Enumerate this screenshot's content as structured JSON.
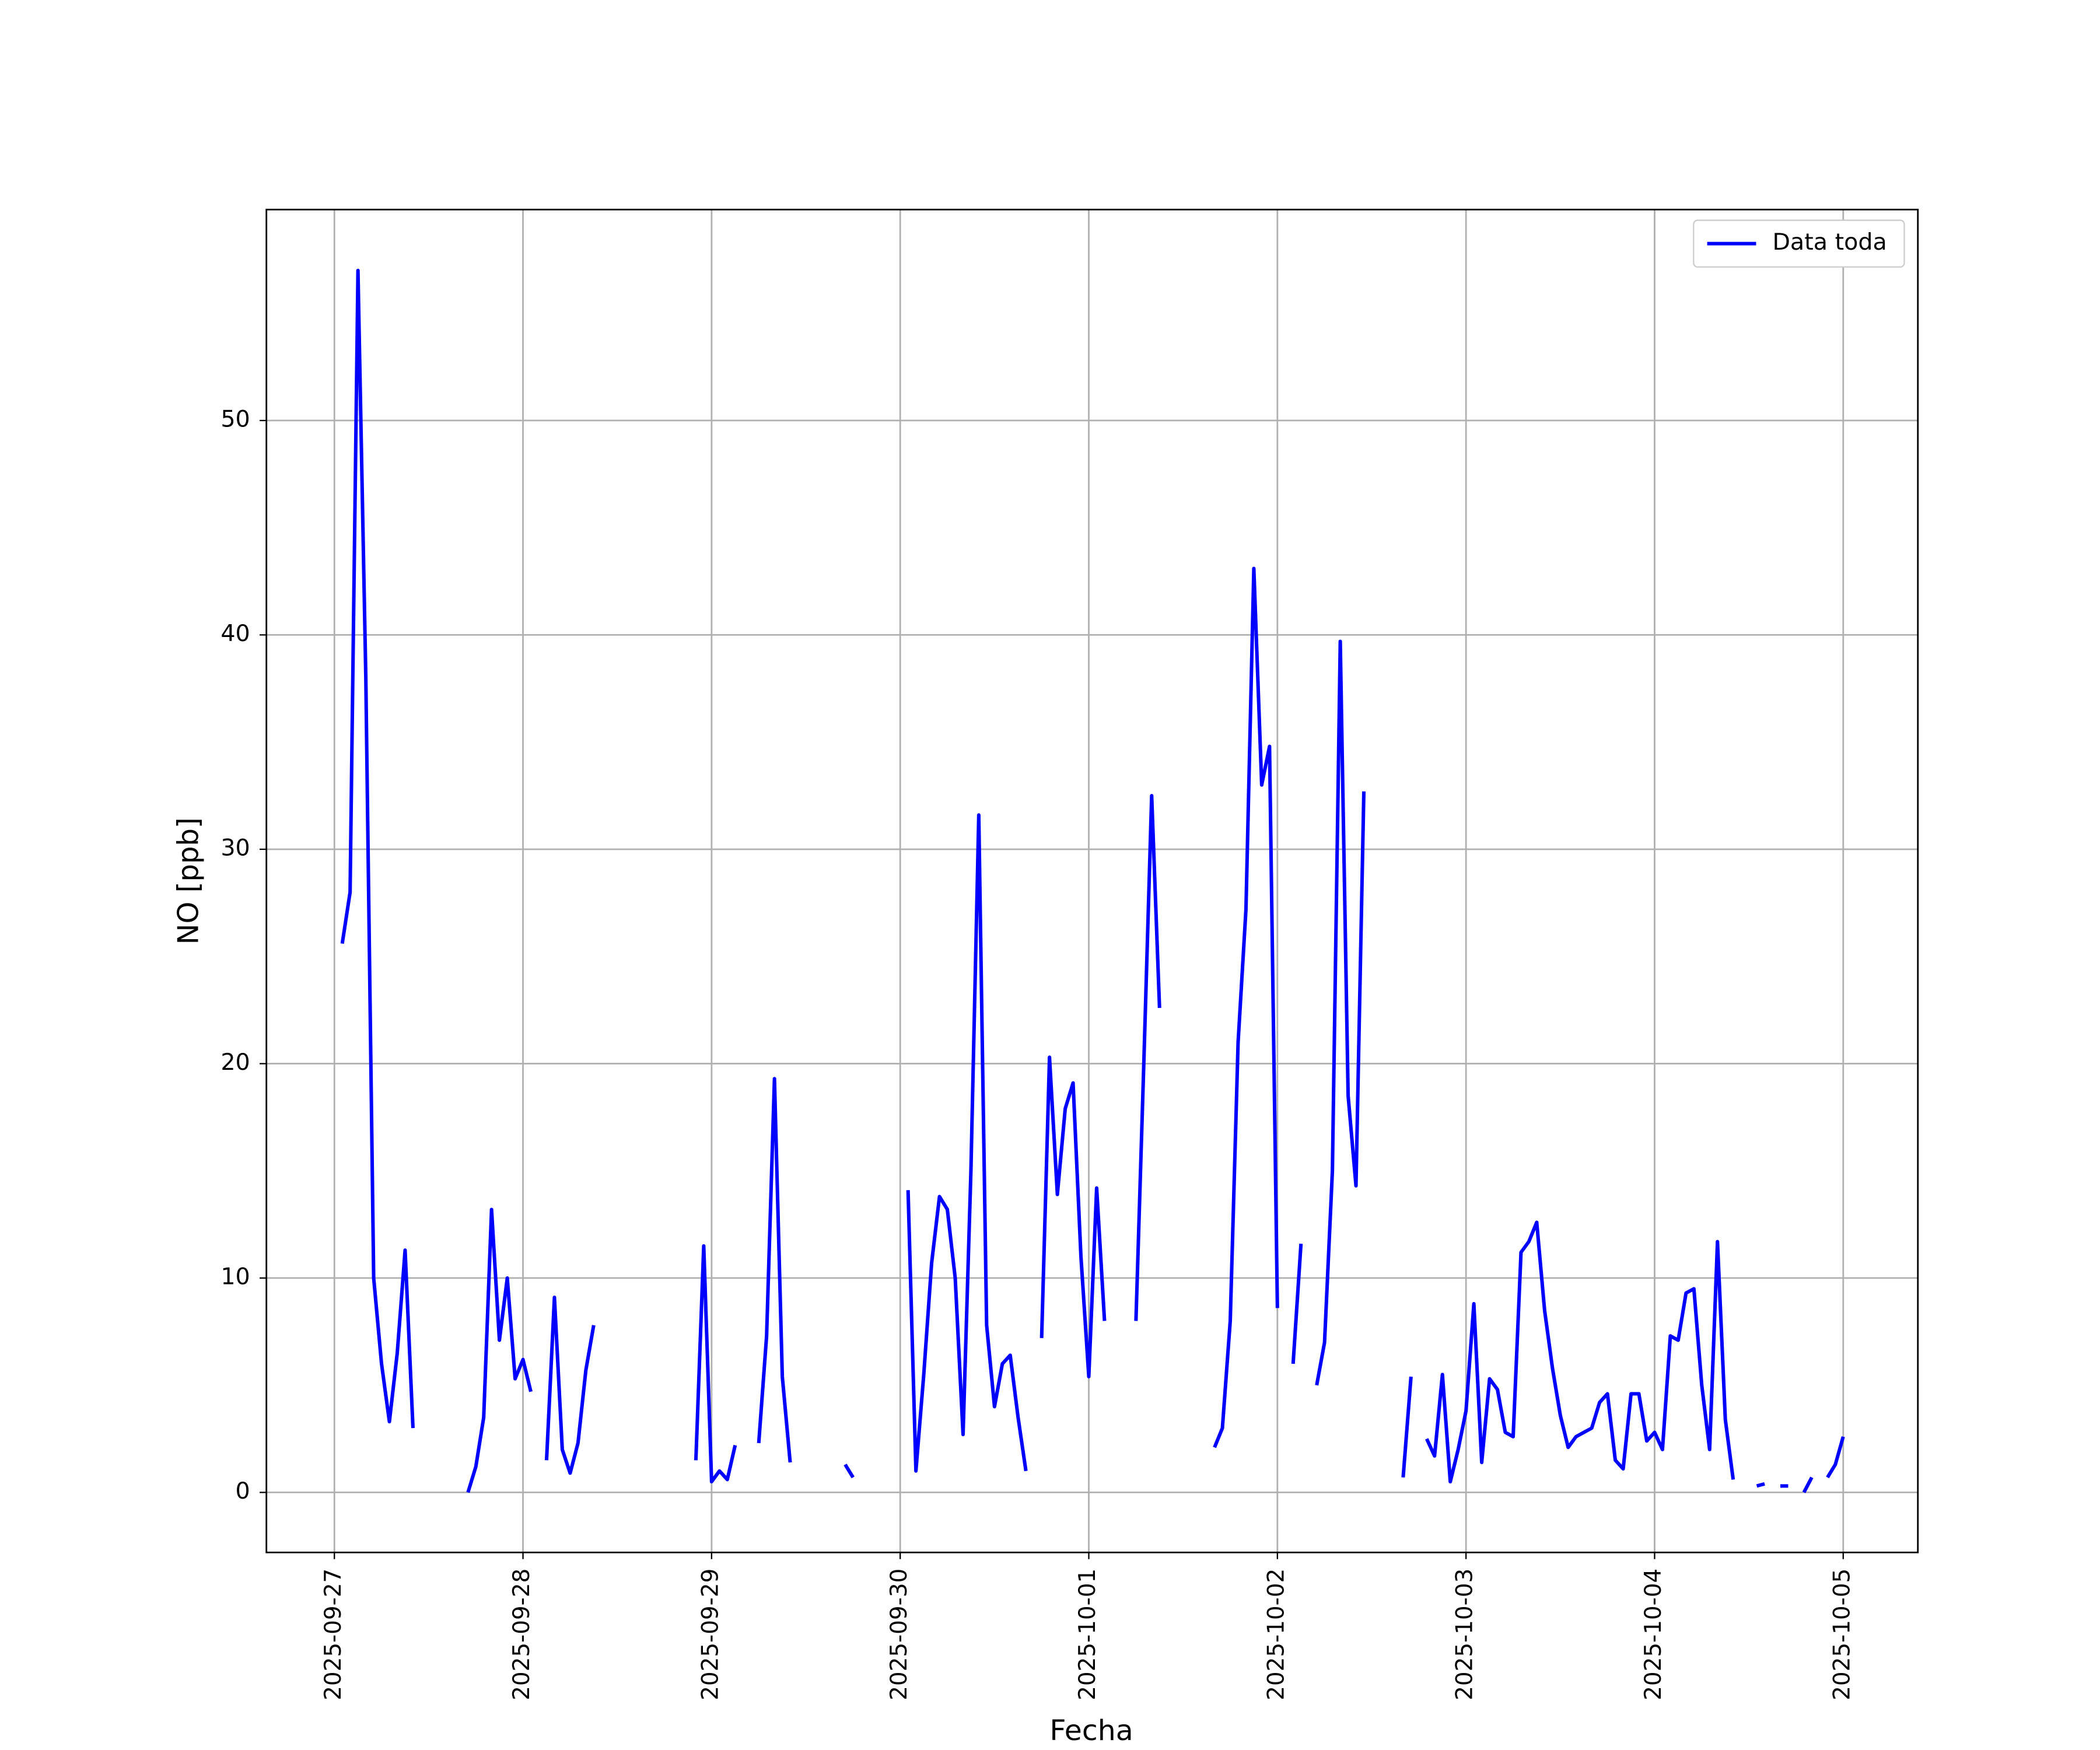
{
  "chart_data": {
    "type": "line",
    "xlabel": "Fecha",
    "ylabel": "NO [ppb]",
    "x": [
      "2025-09-27T01:00",
      "2025-09-27T02:00",
      "2025-09-27T03:00",
      "2025-09-27T04:00",
      "2025-09-27T05:00",
      "2025-09-27T06:00",
      "2025-09-27T07:00",
      "2025-09-27T08:00",
      "2025-09-27T09:00",
      "2025-09-27T10:00",
      "2025-09-27T11:00",
      "2025-09-27T17:00",
      "2025-09-27T18:00",
      "2025-09-27T19:00",
      "2025-09-27T20:00",
      "2025-09-27T21:00",
      "2025-09-27T22:00",
      "2025-09-27T23:00",
      "2025-09-28T00:00",
      "2025-09-28T01:00",
      "2025-09-28T02:00",
      "2025-09-28T03:00",
      "2025-09-28T04:00",
      "2025-09-28T05:00",
      "2025-09-28T06:00",
      "2025-09-28T07:00",
      "2025-09-28T08:00",
      "2025-09-28T09:00",
      "2025-09-28T10:00",
      "2025-09-28T22:00",
      "2025-09-28T23:00",
      "2025-09-29T00:00",
      "2025-09-29T01:00",
      "2025-09-29T02:00",
      "2025-09-29T03:00",
      "2025-09-29T04:00",
      "2025-09-29T06:00",
      "2025-09-29T07:00",
      "2025-09-29T08:00",
      "2025-09-29T09:00",
      "2025-09-29T10:00",
      "2025-09-29T11:00",
      "2025-09-29T17:00",
      "2025-09-29T18:00",
      "2025-09-29T19:00",
      "2025-09-30T01:00",
      "2025-09-30T02:00",
      "2025-09-30T03:00",
      "2025-09-30T04:00",
      "2025-09-30T05:00",
      "2025-09-30T06:00",
      "2025-09-30T07:00",
      "2025-09-30T08:00",
      "2025-09-30T09:00",
      "2025-09-30T10:00",
      "2025-09-30T11:00",
      "2025-09-30T12:00",
      "2025-09-30T13:00",
      "2025-09-30T14:00",
      "2025-09-30T15:00",
      "2025-09-30T16:00",
      "2025-09-30T17:00",
      "2025-09-30T18:00",
      "2025-09-30T19:00",
      "2025-09-30T20:00",
      "2025-09-30T21:00",
      "2025-09-30T22:00",
      "2025-09-30T23:00",
      "2025-10-01T00:00",
      "2025-10-01T01:00",
      "2025-10-01T02:00",
      "2025-10-01T03:00",
      "2025-10-01T06:00",
      "2025-10-01T07:00",
      "2025-10-01T08:00",
      "2025-10-01T09:00",
      "2025-10-01T10:00",
      "2025-10-01T16:00",
      "2025-10-01T17:00",
      "2025-10-01T18:00",
      "2025-10-01T19:00",
      "2025-10-01T20:00",
      "2025-10-01T21:00",
      "2025-10-01T22:00",
      "2025-10-01T23:00",
      "2025-10-02T00:00",
      "2025-10-02T01:00",
      "2025-10-02T02:00",
      "2025-10-02T03:00",
      "2025-10-02T04:00",
      "2025-10-02T05:00",
      "2025-10-02T06:00",
      "2025-10-02T07:00",
      "2025-10-02T08:00",
      "2025-10-02T09:00",
      "2025-10-02T10:00",
      "2025-10-02T11:00",
      "2025-10-02T12:00",
      "2025-10-02T16:00",
      "2025-10-02T17:00",
      "2025-10-02T18:00",
      "2025-10-02T19:00",
      "2025-10-02T20:00",
      "2025-10-02T21:00",
      "2025-10-02T22:00",
      "2025-10-02T23:00",
      "2025-10-03T00:00",
      "2025-10-03T01:00",
      "2025-10-03T02:00",
      "2025-10-03T03:00",
      "2025-10-03T04:00",
      "2025-10-03T05:00",
      "2025-10-03T06:00",
      "2025-10-03T07:00",
      "2025-10-03T08:00",
      "2025-10-03T09:00",
      "2025-10-03T10:00",
      "2025-10-03T11:00",
      "2025-10-03T12:00",
      "2025-10-03T13:00",
      "2025-10-03T14:00",
      "2025-10-03T15:00",
      "2025-10-03T16:00",
      "2025-10-03T17:00",
      "2025-10-03T18:00",
      "2025-10-03T19:00",
      "2025-10-03T20:00",
      "2025-10-03T21:00",
      "2025-10-03T22:00",
      "2025-10-03T23:00",
      "2025-10-04T00:00",
      "2025-10-04T01:00",
      "2025-10-04T02:00",
      "2025-10-04T03:00",
      "2025-10-04T04:00",
      "2025-10-04T05:00",
      "2025-10-04T06:00",
      "2025-10-04T07:00",
      "2025-10-04T08:00",
      "2025-10-04T09:00",
      "2025-10-04T10:00",
      "2025-10-04T11:00",
      "2025-10-04T13:00",
      "2025-10-04T14:00",
      "2025-10-04T15:00",
      "2025-10-04T16:00",
      "2025-10-04T17:00",
      "2025-10-04T18:00",
      "2025-10-04T19:00",
      "2025-10-04T20:00",
      "2025-10-04T21:00",
      "2025-10-04T22:00",
      "2025-10-04T23:00",
      "2025-10-05T00:00"
    ],
    "series": [
      {
        "name": "Data toda",
        "color": "#0000ff",
        "values": [
          25.6,
          28,
          57,
          38,
          10,
          6,
          3.3,
          6.5,
          11.3,
          3.0,
          null,
          0,
          1.2,
          3.5,
          13.2,
          7.1,
          10,
          5.3,
          6.2,
          4.7,
          null,
          1.5,
          9.1,
          2,
          0.9,
          2.3,
          5.7,
          7.8,
          null,
          1.5,
          11.5,
          0.5,
          1.0,
          0.6,
          2.2,
          null,
          2.3,
          7.3,
          19.3,
          5.4,
          1.4,
          null,
          1.3,
          0.7,
          null,
          14.1,
          1.0,
          5.5,
          10.7,
          13.8,
          13.2,
          10,
          2.7,
          15,
          31.6,
          7.8,
          4.0,
          6,
          6.4,
          3.5,
          1.0,
          null,
          7.2,
          20.3,
          13.9,
          17.9,
          19.1,
          11,
          5.4,
          14.2,
          8.0,
          null,
          8.0,
          20,
          32.5,
          22.6,
          null,
          2.1,
          3.0,
          8,
          21,
          27.2,
          43.1,
          33,
          34.8,
          8.6,
          null,
          6.0,
          11.6,
          null,
          5.0,
          7,
          15,
          39.7,
          18.5,
          14.3,
          32.7,
          null,
          0.7,
          5.4,
          null,
          2.5,
          1.7,
          5.5,
          0.5,
          2,
          3.8,
          8.8,
          1.4,
          5.3,
          4.8,
          2.8,
          2.6,
          11.2,
          11.7,
          12.6,
          8.5,
          5.8,
          3.6,
          2.1,
          2.6,
          2.8,
          3,
          4.2,
          4.6,
          1.5,
          1.1,
          4.6,
          4.6,
          2.4,
          2.8,
          2.0,
          7.3,
          7.1,
          9.3,
          9.5,
          5.0,
          2.0,
          11.7,
          3.4,
          0.6,
          null,
          0.3,
          0.4,
          null,
          0.3,
          0.3,
          null,
          0,
          0.7,
          null,
          0.7,
          1.3,
          2.6
        ]
      }
    ],
    "xlim": [
      "2025-09-26T15:21",
      "2025-10-05T09:30"
    ],
    "xticks": [
      "2025-09-27",
      "2025-09-28",
      "2025-09-29",
      "2025-09-30",
      "2025-10-01",
      "2025-10-02",
      "2025-10-03",
      "2025-10-04",
      "2025-10-05"
    ],
    "ylim": [
      -2.8,
      59.84
    ],
    "yticks": [
      0,
      10,
      20,
      30,
      40,
      50
    ],
    "grid": true,
    "legend": "upper right"
  }
}
